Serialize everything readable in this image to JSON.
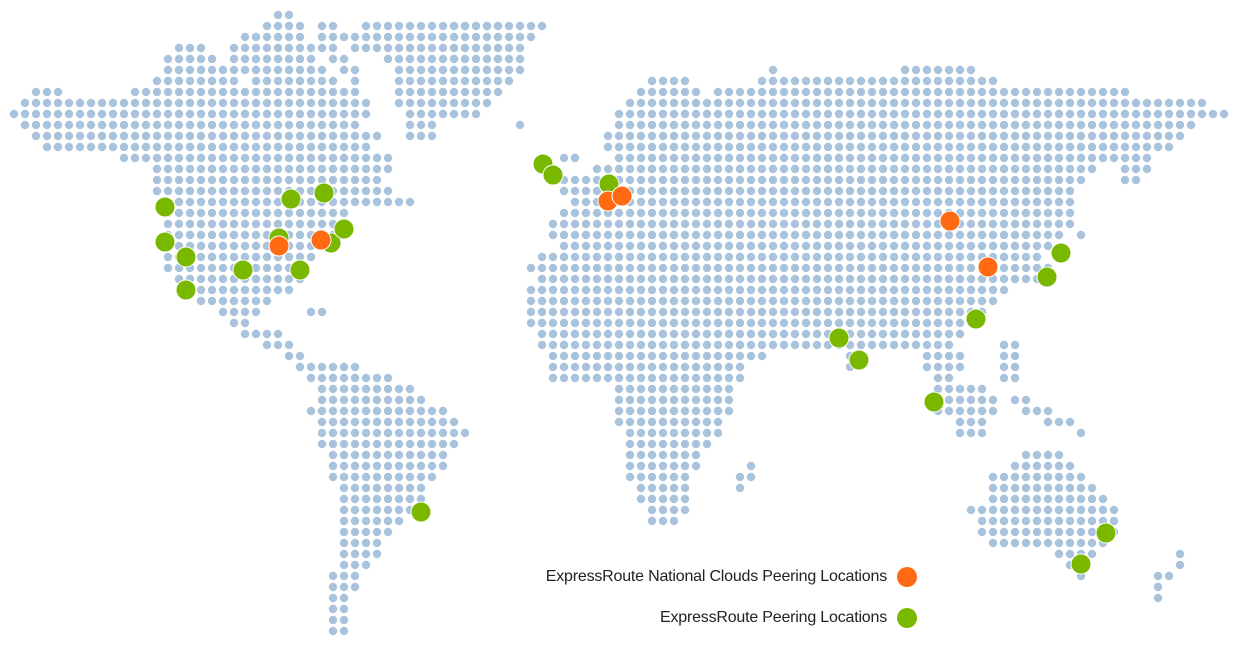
{
  "colors": {
    "land_dot": "#aac3dc",
    "national_clouds": "#ff6a13",
    "peering": "#7ab800",
    "marker_stroke": "#ffffff"
  },
  "legend": [
    {
      "key": "national_clouds",
      "label": "ExpressRoute National Clouds Peering Locations"
    },
    {
      "key": "peering",
      "label": "ExpressRoute Peering Locations"
    }
  ]
}
